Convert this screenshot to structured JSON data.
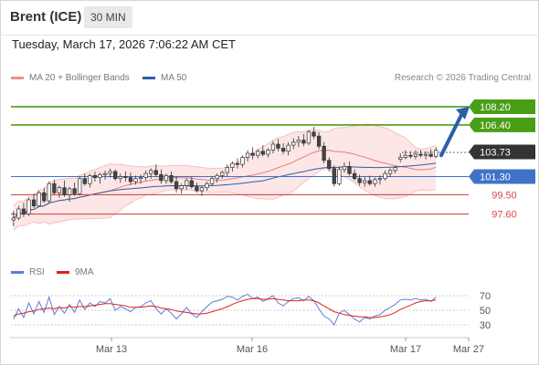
{
  "header": {
    "instrument": "Brent (ICE)",
    "period": "30 MIN"
  },
  "timestamp": "Tuesday, March 17, 2026 7:06:22 AM CET",
  "legend": {
    "bollinger": {
      "label": "MA 20 + Bollinger Bands",
      "color": "#f08f8f"
    },
    "ma50": {
      "label": "MA 50",
      "color": "#2c5fa8"
    },
    "rsi": {
      "label": "RSI",
      "color": "#5b7fd6"
    },
    "ma9": {
      "label": "9MA",
      "color": "#e02020"
    }
  },
  "credit": "Research © 2026 Trading Central",
  "colors": {
    "up": "#ffffff",
    "down": "#444444",
    "target": "#4a9e16",
    "support": "#d94a4a",
    "pivot": "#3f73c8",
    "arrow": "#2c5fa8",
    "band_fill": "#fce2e2",
    "grid": "#d0d0d0"
  },
  "chart_data": {
    "type": "candlestick",
    "price_range": [
      93.5,
      110.0
    ],
    "levels": [
      {
        "value": 108.2,
        "label": "108.20",
        "kind": "target"
      },
      {
        "value": 106.4,
        "label": "106.40",
        "kind": "target"
      },
      {
        "value": 103.73,
        "label": "103.73",
        "kind": "last"
      },
      {
        "value": 101.3,
        "label": "101.30",
        "kind": "pivot"
      },
      {
        "value": 99.5,
        "label": "99.50",
        "kind": "support"
      },
      {
        "value": 97.6,
        "label": "97.60",
        "kind": "support"
      }
    ],
    "x_labels": [
      "Mar 13",
      "Mar 16",
      "Mar 17",
      "Mar 27"
    ],
    "projection": {
      "from": 103.4,
      "to": 108.2
    },
    "ohlc": [
      [
        97.0,
        97.9,
        96.4,
        97.2
      ],
      [
        97.2,
        98.4,
        97.0,
        98.1
      ],
      [
        98.1,
        98.7,
        97.3,
        97.6
      ],
      [
        97.6,
        99.2,
        97.4,
        99.0
      ],
      [
        99.0,
        99.6,
        98.2,
        98.4
      ],
      [
        98.4,
        99.9,
        98.3,
        99.7
      ],
      [
        99.7,
        100.2,
        98.7,
        98.9
      ],
      [
        98.9,
        100.8,
        98.7,
        100.6
      ],
      [
        100.6,
        101.0,
        99.5,
        99.7
      ],
      [
        99.7,
        100.4,
        99.2,
        100.2
      ],
      [
        100.2,
        100.9,
        99.3,
        99.5
      ],
      [
        99.5,
        100.3,
        98.8,
        100.1
      ],
      [
        100.1,
        100.7,
        99.4,
        99.6
      ],
      [
        99.6,
        101.3,
        99.5,
        101.1
      ],
      [
        101.1,
        101.6,
        100.4,
        100.6
      ],
      [
        100.6,
        101.6,
        100.2,
        101.4
      ],
      [
        101.4,
        101.8,
        100.8,
        101.2
      ],
      [
        101.2,
        101.7,
        100.6,
        101.5
      ],
      [
        101.5,
        101.9,
        101.0,
        101.6
      ],
      [
        101.6,
        102.1,
        101.2,
        101.8
      ],
      [
        101.8,
        102.0,
        100.9,
        101.1
      ],
      [
        101.1,
        101.6,
        100.7,
        101.3
      ],
      [
        101.3,
        101.8,
        100.8,
        101.2
      ],
      [
        101.2,
        101.7,
        100.5,
        100.8
      ],
      [
        100.8,
        101.4,
        100.5,
        101.1
      ],
      [
        101.1,
        101.5,
        100.6,
        101.2
      ],
      [
        101.2,
        101.9,
        100.9,
        101.6
      ],
      [
        101.6,
        102.1,
        101.1,
        101.9
      ],
      [
        101.9,
        102.5,
        101.3,
        101.5
      ],
      [
        101.5,
        102.0,
        100.6,
        100.9
      ],
      [
        100.9,
        101.6,
        100.6,
        101.4
      ],
      [
        101.4,
        101.8,
        100.6,
        100.8
      ],
      [
        100.8,
        101.3,
        99.7,
        100.1
      ],
      [
        100.1,
        100.6,
        99.6,
        100.4
      ],
      [
        100.4,
        101.1,
        100.0,
        100.9
      ],
      [
        100.9,
        101.3,
        100.1,
        100.3
      ],
      [
        100.3,
        100.7,
        99.7,
        99.9
      ],
      [
        99.9,
        100.4,
        99.4,
        100.2
      ],
      [
        100.2,
        100.8,
        99.9,
        100.6
      ],
      [
        100.6,
        101.3,
        100.4,
        101.1
      ],
      [
        101.1,
        101.6,
        100.7,
        101.4
      ],
      [
        101.4,
        101.9,
        101.1,
        101.7
      ],
      [
        101.7,
        102.5,
        101.3,
        102.2
      ],
      [
        102.2,
        102.8,
        101.8,
        102.6
      ],
      [
        102.6,
        103.1,
        102.1,
        102.5
      ],
      [
        102.5,
        103.4,
        102.2,
        103.2
      ],
      [
        103.2,
        103.9,
        102.8,
        103.6
      ],
      [
        103.6,
        104.2,
        103.0,
        103.4
      ],
      [
        103.4,
        104.0,
        103.1,
        103.8
      ],
      [
        103.8,
        104.4,
        103.3,
        103.5
      ],
      [
        103.5,
        104.1,
        103.2,
        103.9
      ],
      [
        103.9,
        104.8,
        103.6,
        104.5
      ],
      [
        104.5,
        105.0,
        103.8,
        104.1
      ],
      [
        104.1,
        104.6,
        103.5,
        103.8
      ],
      [
        103.8,
        104.7,
        103.4,
        104.4
      ],
      [
        104.4,
        105.1,
        104.0,
        104.7
      ],
      [
        104.7,
        105.3,
        104.2,
        104.9
      ],
      [
        104.9,
        105.5,
        104.3,
        104.6
      ],
      [
        104.6,
        105.9,
        104.4,
        105.7
      ],
      [
        105.7,
        106.2,
        105.0,
        105.3
      ],
      [
        105.3,
        105.7,
        104.0,
        104.3
      ],
      [
        104.3,
        104.7,
        102.6,
        102.9
      ],
      [
        102.9,
        103.2,
        101.8,
        102.1
      ],
      [
        102.1,
        102.4,
        100.3,
        100.6
      ],
      [
        100.6,
        102.3,
        100.4,
        102.0
      ],
      [
        102.0,
        102.7,
        101.7,
        102.3
      ],
      [
        102.3,
        102.8,
        101.4,
        101.6
      ],
      [
        101.6,
        102.0,
        100.9,
        101.1
      ],
      [
        101.1,
        101.5,
        100.4,
        100.7
      ],
      [
        100.7,
        101.3,
        100.3,
        100.9
      ],
      [
        100.9,
        101.4,
        100.4,
        100.6
      ],
      [
        100.6,
        101.2,
        100.3,
        101.0
      ],
      [
        101.0,
        101.4,
        100.5,
        101.1
      ],
      [
        101.1,
        101.9,
        100.9,
        101.6
      ],
      [
        101.6,
        102.1,
        101.3,
        101.9
      ],
      [
        101.9,
        102.4,
        101.6,
        102.2
      ],
      [
        103.0,
        103.6,
        102.7,
        103.2
      ],
      [
        103.2,
        103.9,
        103.0,
        103.4
      ],
      [
        103.4,
        103.8,
        103.1,
        103.3
      ],
      [
        103.3,
        103.9,
        103.0,
        103.5
      ],
      [
        103.5,
        103.9,
        103.2,
        103.4
      ],
      [
        103.4,
        103.8,
        103.0,
        103.5
      ],
      [
        103.5,
        104.0,
        103.2,
        103.3
      ],
      [
        103.3,
        104.2,
        103.1,
        103.9
      ]
    ],
    "rsi_axis": {
      "range": [
        20,
        80
      ],
      "ticks": [
        70,
        50,
        30
      ]
    },
    "rsi": [
      38,
      52,
      40,
      60,
      45,
      62,
      47,
      68,
      44,
      55,
      46,
      58,
      47,
      64,
      51,
      60,
      55,
      62,
      60,
      66,
      50,
      55,
      52,
      48,
      54,
      55,
      60,
      63,
      52,
      45,
      52,
      46,
      38,
      45,
      54,
      45,
      40,
      48,
      55,
      61,
      63,
      65,
      69,
      68,
      64,
      69,
      72,
      66,
      68,
      62,
      66,
      70,
      60,
      56,
      62,
      66,
      67,
      63,
      69,
      63,
      52,
      42,
      38,
      30,
      46,
      50,
      44,
      38,
      34,
      40,
      38,
      42,
      44,
      50,
      54,
      58,
      64,
      65,
      64,
      66,
      64,
      65,
      62,
      68
    ],
    "ma9": [
      42,
      45,
      46,
      48,
      49,
      51,
      52,
      53,
      52,
      54,
      53,
      55,
      54,
      55,
      55,
      56,
      57,
      58,
      59,
      59,
      58,
      57,
      56,
      54,
      54,
      54,
      55,
      56,
      55,
      53,
      52,
      51,
      49,
      48,
      47,
      46,
      45,
      45,
      46,
      48,
      50,
      52,
      55,
      58,
      61,
      63,
      65,
      66,
      66,
      65,
      65,
      66,
      65,
      64,
      63,
      63,
      63,
      64,
      64,
      63,
      60,
      56,
      52,
      48,
      46,
      44,
      43,
      42,
      41,
      41,
      40,
      40,
      41,
      42,
      44,
      47,
      51,
      54,
      57,
      60,
      62,
      63,
      63,
      64
    ]
  }
}
